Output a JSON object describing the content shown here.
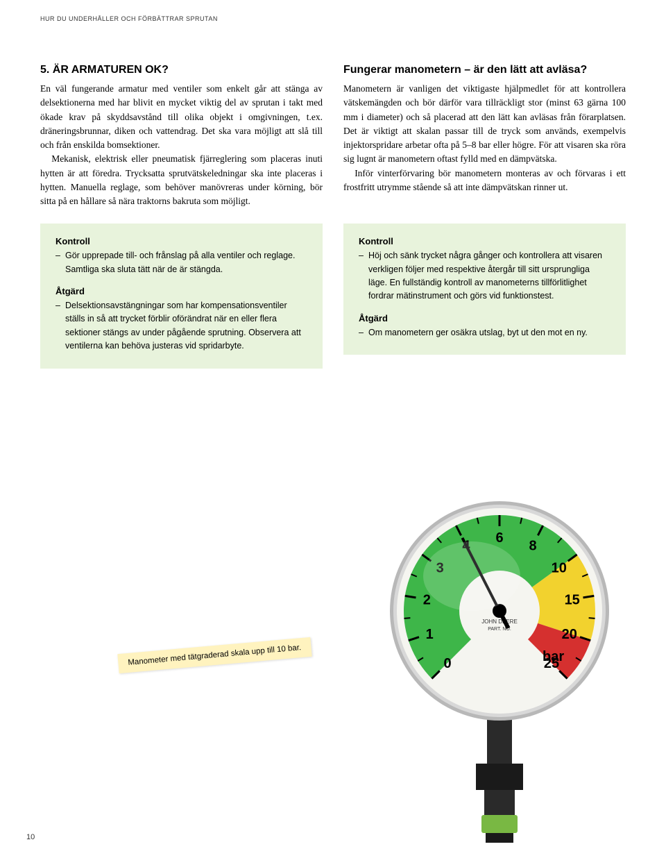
{
  "header_text": "HUR DU UNDERHÅLLER OCH FÖRBÄTTRAR SPRUTAN",
  "page_number": "10",
  "left_col": {
    "heading": "5. ÄR ARMATUREN OK?",
    "para1": "En väl fungerande armatur med ventiler som enkelt går att stänga av delsektionerna med har blivit en mycket viktig del av sprutan i takt med ökade krav på skyddsavstånd till olika objekt i omgivningen, t.ex. dräneringsbrunnar, diken och vattendrag. Det ska vara möjligt att slå till och från enskilda bomsektioner.",
    "para2": "Mekanisk, elektrisk eller pneumatisk fjärreglering som placeras inuti hytten är att föredra. Trycksatta sprutvätskeledningar ska inte placeras i hytten. Manuella reglage, som behöver manövreras under körning, bör sitta på en hållare så nära traktorns bakruta som möjligt."
  },
  "right_col": {
    "heading": "Fungerar manometern – är den lätt att avläsa?",
    "para1": "Manometern är vanligen det viktigaste hjälpmedlet för att kontrollera vätskemängden och bör därför vara tillräckligt stor (minst 63 gärna 100 mm i diameter) och så placerad att den lätt kan avläsas från förarplatsen. Det är viktigt att skalan passar till de tryck som används, exempelvis injektorspridare arbetar ofta på 5–8 bar eller högre. För att visaren ska röra sig lugnt är manometern oftast fylld med en dämpvätska.",
    "para2": "Inför vinterförvaring bör manometern monteras av och förvaras i ett frostfritt utrymme stående så att inte dämpvätskan rinner ut."
  },
  "box_left": {
    "h_kontroll": "Kontroll",
    "kontroll_item": "Gör upprepade till- och frånslag på alla ventiler och reglage. Samtliga ska sluta tätt när de är stängda.",
    "h_atgard": "Åtgärd",
    "atgard_item": "Delsektionsavstängningar som har kompensationsventiler ställs in så att trycket förblir oförändrat när en eller flera sektioner stängs av under pågående sprutning. Observera att ventilerna kan behöva justeras vid spridarbyte."
  },
  "box_right": {
    "h_kontroll": "Kontroll",
    "kontroll_item": "Höj och sänk trycket några gånger och kontrollera att visaren verkligen följer med respektive återgår till sitt ursprungliga läge. En fullständig kontroll av manometerns tillförlitlighet fordrar mätinstrument och görs vid funktionstest.",
    "h_atgard": "Åtgärd",
    "atgard_item": "Om manometern ger osäkra utslag, byt ut den mot en ny."
  },
  "caption_text": "Manometer med tätgraderad skala upp till 10 bar.",
  "gauge": {
    "diameter": 300,
    "bezel_color": "#b8b8b8",
    "bezel_inner": "#d8d8d8",
    "face_bg": "#f5f5f0",
    "green": "#3eb649",
    "yellow": "#f2d22e",
    "red": "#d5302f",
    "tick_color": "#000000",
    "needle_color": "#000000",
    "text_color": "#000000",
    "unit_label": "bar",
    "ticks": [
      "0",
      "1",
      "2",
      "3",
      "4",
      "6",
      "8",
      "10",
      "15",
      "20",
      "25"
    ],
    "needle_value_deg": 108,
    "stem_color": "#2a2a2a",
    "nut_color": "#1a1a1a",
    "base_green": "#79b843"
  }
}
